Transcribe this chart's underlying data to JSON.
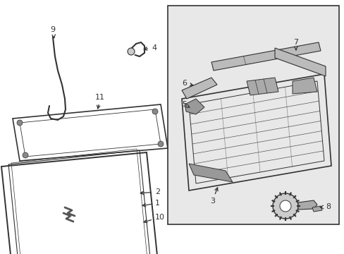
{
  "background_color": "#ffffff",
  "box_fill": "#e8e8e8",
  "fig_width": 4.89,
  "fig_height": 3.6,
  "dpi": 100,
  "line_color": "#333333",
  "label_fontsize": 8.0
}
